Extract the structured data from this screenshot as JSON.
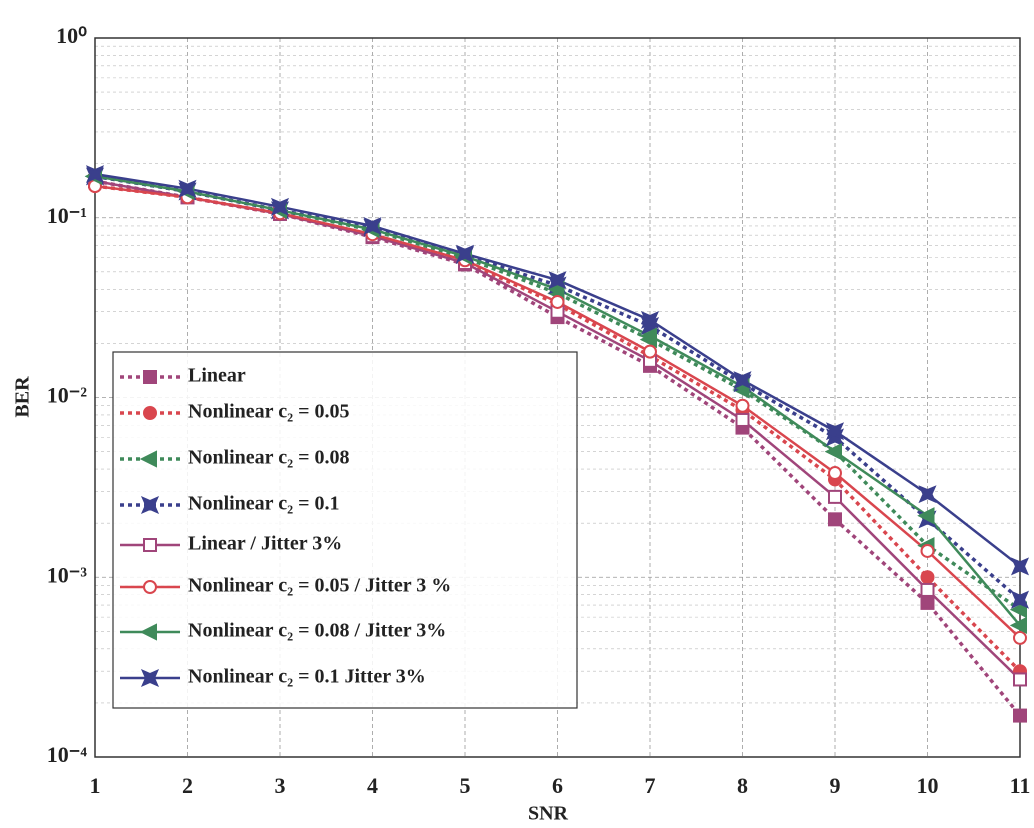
{
  "chart_data": {
    "type": "line",
    "x_label": "SNR",
    "y_label": "BER",
    "log_y": true,
    "grid": true,
    "legend": "lower left",
    "x": [
      1,
      2,
      3,
      4,
      5,
      6,
      7,
      8,
      9,
      10,
      11
    ],
    "xlim": [
      1,
      11
    ],
    "xticks": [
      1,
      2,
      3,
      4,
      5,
      6,
      7,
      8,
      9,
      10,
      11
    ],
    "ylim": [
      0.0001,
      1
    ],
    "yticks": [
      {
        "value": 1,
        "label": "10⁰"
      },
      {
        "value": 0.1,
        "label": "10⁻¹"
      },
      {
        "value": 0.01,
        "label": "10⁻²"
      },
      {
        "value": 0.001,
        "label": "10⁻³"
      },
      {
        "value": 0.0001,
        "label": "10⁻⁴"
      }
    ],
    "series": [
      {
        "name": "Linear",
        "color": "#a0457a",
        "linestyle": "dotted",
        "marker": "square",
        "values": [
          0.16,
          0.13,
          0.105,
          0.078,
          0.055,
          0.028,
          0.015,
          0.0068,
          0.0021,
          0.00072,
          0.00017
        ]
      },
      {
        "name": "Nonlinear c₂ = 0.05",
        "color": "#d9464e",
        "linestyle": "dotted",
        "marker": "circle",
        "values": [
          0.15,
          0.13,
          0.105,
          0.08,
          0.057,
          0.033,
          0.017,
          0.0085,
          0.0035,
          0.001,
          0.0003
        ]
      },
      {
        "name": "Nonlinear c₂ = 0.08",
        "color": "#3f8a5a",
        "linestyle": "dotted",
        "marker": "triangle",
        "values": [
          0.17,
          0.14,
          0.11,
          0.085,
          0.06,
          0.038,
          0.021,
          0.011,
          0.005,
          0.0015,
          0.00066
        ]
      },
      {
        "name": "Nonlinear c₂ = 0.1",
        "color": "#3a3f8c",
        "linestyle": "dotted",
        "marker": "star",
        "values": [
          0.17,
          0.14,
          0.11,
          0.088,
          0.062,
          0.042,
          0.025,
          0.012,
          0.006,
          0.0021,
          0.00075
        ]
      },
      {
        "name": "Linear / Jitter 3%",
        "color": "#a0457a",
        "linestyle": "solid",
        "marker": "square-open",
        "values": [
          0.16,
          0.13,
          0.105,
          0.079,
          0.056,
          0.03,
          0.016,
          0.0075,
          0.0028,
          0.00085,
          0.00027
        ]
      },
      {
        "name": "Nonlinear c₂ = 0.05 / Jitter 3 %",
        "color": "#d9464e",
        "linestyle": "solid",
        "marker": "circle-open",
        "values": [
          0.15,
          0.13,
          0.106,
          0.081,
          0.058,
          0.034,
          0.018,
          0.009,
          0.0038,
          0.0014,
          0.00046
        ]
      },
      {
        "name": "Nonlinear c₂ = 0.08 / Jitter 3%",
        "color": "#3f8a5a",
        "linestyle": "solid",
        "marker": "triangle",
        "values": [
          0.17,
          0.14,
          0.11,
          0.086,
          0.061,
          0.04,
          0.022,
          0.0115,
          0.005,
          0.0022,
          0.00054
        ]
      },
      {
        "name": "Nonlinear c₂ = 0.1 Jitter 3%",
        "color": "#3a3f8c",
        "linestyle": "solid",
        "marker": "star",
        "values": [
          0.175,
          0.145,
          0.115,
          0.09,
          0.063,
          0.045,
          0.027,
          0.0125,
          0.0065,
          0.0029,
          0.00115
        ]
      }
    ]
  }
}
